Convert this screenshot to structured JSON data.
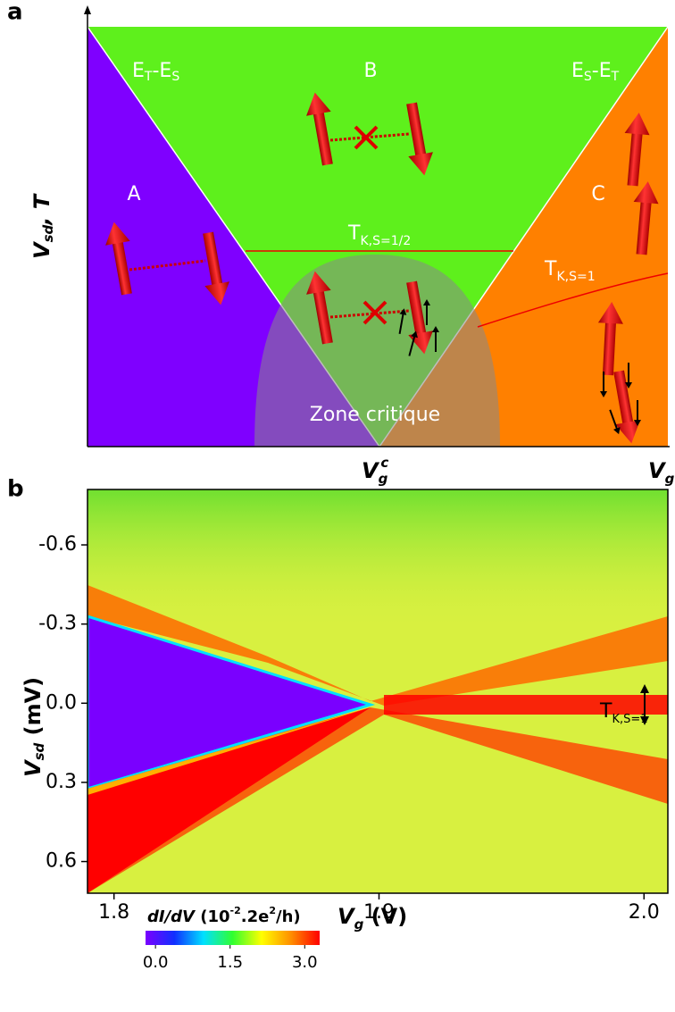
{
  "diagram": {
    "panel_label": "a",
    "y_label": [
      "V",
      "sd",
      ", T"
    ],
    "x_label_critical": [
      "V",
      "g",
      "c"
    ],
    "x_label": [
      "V",
      "g"
    ],
    "region_left_edge": [
      "E",
      "T",
      "-E",
      "S"
    ],
    "region_top": "B",
    "region_right_edge": [
      "E",
      "S",
      "-E",
      "T"
    ],
    "region_a": "A",
    "region_c": "C",
    "kondo_half": [
      "T",
      "K,S=1/2"
    ],
    "kondo_one": [
      "T",
      "K,S=1"
    ],
    "critical_zone": "Zone critique"
  },
  "chart_data": {
    "type": "heatmap",
    "panel_label": "b",
    "x_label": [
      "V",
      "g",
      " (V)"
    ],
    "y_label": [
      "V",
      "sd",
      " (mV)"
    ],
    "xlim": [
      1.79,
      2.009
    ],
    "xticks": [
      1.8,
      1.9,
      {
        "value": 2,
        "label": "2.0"
      }
    ],
    "ylim": [
      -0.81,
      0.72
    ],
    "y_inverted": true,
    "yticks": [
      -0.6,
      -0.3,
      {
        "value": 0,
        "label": "0.0"
      },
      0.3,
      0.6
    ],
    "annotation": [
      "T",
      "K,S=1"
    ],
    "colorbar": {
      "title": [
        "dI/dV",
        " (10",
        "-2",
        ".2e",
        "2",
        "/h)"
      ],
      "clim": [
        -0.2,
        3.3
      ],
      "ticks": [
        {
          "value": 0,
          "label": "0.0"
        },
        1.5,
        {
          "value": 3,
          "label": "3.0"
        }
      ],
      "colormap": [
        "#7a00ff",
        "#1030ff",
        "#00e0ff",
        "#30ff30",
        "#ffff00",
        "#ff9000",
        "#ff0000"
      ]
    }
  }
}
